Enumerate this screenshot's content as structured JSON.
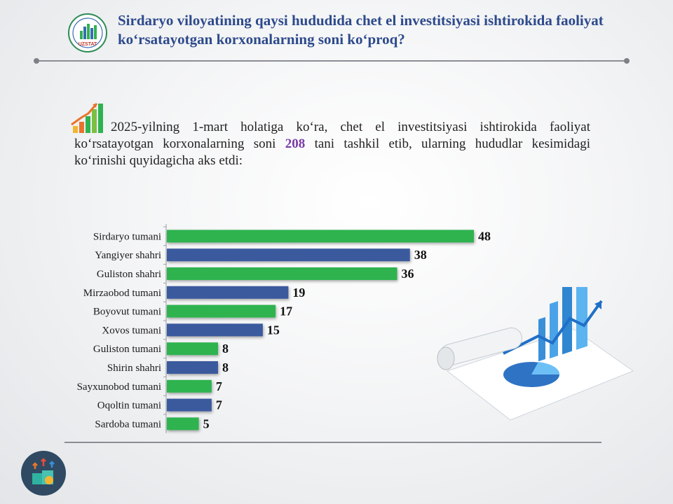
{
  "header": {
    "title": "Sirdaryo viloyatining qaysi hududida chet el investitsiyasi ishtirokida faoliyat ko‘rsatayotgan korxonalarning soni ko‘proq?",
    "logo_text": "UZSTAT"
  },
  "intro": {
    "text_before": "2025-yilning 1-mart holatiga ko‘ra, chet el investitsiyasi ishtirokida faoliyat ko‘rsatayotgan korxonalarning soni ",
    "highlight": "208",
    "text_after": " tani tashkil etib, ularning hududlar kesimidagi ko‘rinishi quyidagicha aks etdi:"
  },
  "colors": {
    "green": "#2fb350",
    "blue": "#3a5a9e",
    "title": "#2d4a8c",
    "highlight": "#7a3aa8"
  },
  "chart_data": {
    "type": "bar",
    "orientation": "horizontal",
    "categories": [
      "Sirdaryo tumani",
      "Yangiyer shahri",
      "Guliston shahri",
      "Mirzaobod tumani",
      "Boyovut tumani",
      "Xovos tumani",
      "Guliston tumani",
      "Shirin shahri",
      "Sayxunobod tumani",
      "Oqoltin tumani",
      "Sardoba tumani"
    ],
    "values": [
      48,
      38,
      36,
      19,
      17,
      15,
      8,
      8,
      7,
      7,
      5
    ],
    "bar_colors": [
      "green",
      "blue",
      "green",
      "blue",
      "green",
      "blue",
      "green",
      "blue",
      "green",
      "blue",
      "green"
    ],
    "data_labels": true,
    "xlim": [
      0,
      48
    ],
    "grid": false
  },
  "decor": {
    "icon": "chart-growth-illustration"
  }
}
